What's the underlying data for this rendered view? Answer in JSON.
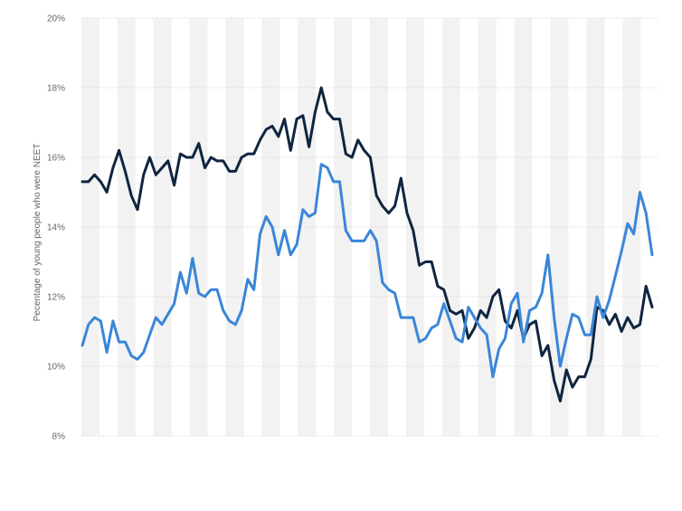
{
  "colors": {
    "series_dark": "#0f2540",
    "series_light": "#3a86d8",
    "band": "#f2f2f2",
    "grid": "#cfcfcf",
    "tick_text": "#666666"
  },
  "chart_data": {
    "type": "line",
    "title": "",
    "xlabel": "",
    "ylabel": "Pecentage of young people who were NEET",
    "ylim": [
      8,
      20
    ],
    "y_ticks": [
      8,
      10,
      12,
      14,
      16,
      18,
      20
    ],
    "y_tick_labels": [
      "8%",
      "10%",
      "12%",
      "14%",
      "16%",
      "18%",
      "20%"
    ],
    "grid": true,
    "legend": "none",
    "series": [
      {
        "color": "#0f2540",
        "values": [
          15.3,
          15.3,
          15.5,
          15.3,
          15.0,
          15.7,
          16.2,
          15.6,
          14.9,
          14.5,
          15.5,
          16.0,
          15.5,
          15.7,
          15.9,
          15.2,
          16.1,
          16.0,
          16.0,
          16.4,
          15.7,
          16.0,
          15.9,
          15.9,
          15.6,
          15.6,
          16.0,
          16.1,
          16.1,
          16.5,
          16.8,
          16.9,
          16.6,
          17.1,
          16.2,
          17.1,
          17.2,
          16.3,
          17.3,
          18.0,
          17.3,
          17.1,
          17.1,
          16.1,
          16.0,
          16.5,
          16.2,
          16.0,
          14.9,
          14.6,
          14.4,
          14.6,
          15.4,
          14.4,
          13.9,
          12.9,
          13.0,
          13.0,
          12.3,
          12.2,
          11.6,
          11.5,
          11.6,
          10.8,
          11.1,
          11.6,
          11.4,
          12.0,
          12.2,
          11.3,
          11.1,
          11.6,
          10.8,
          11.2,
          11.3,
          10.3,
          10.6,
          9.6,
          9.0,
          9.9,
          9.4,
          9.7,
          9.7,
          10.2,
          11.7,
          11.6,
          11.2,
          11.5,
          11.0,
          11.4,
          11.1,
          11.2,
          12.3,
          11.7
        ]
      },
      {
        "color": "#3a86d8",
        "values": [
          10.6,
          11.2,
          11.4,
          11.3,
          10.4,
          11.3,
          10.7,
          10.7,
          10.3,
          10.2,
          10.4,
          10.9,
          11.4,
          11.2,
          11.5,
          11.8,
          12.7,
          12.1,
          13.1,
          12.1,
          12.0,
          12.2,
          12.2,
          11.6,
          11.3,
          11.2,
          11.6,
          12.5,
          12.2,
          13.8,
          14.3,
          14.0,
          13.2,
          13.9,
          13.2,
          13.5,
          14.5,
          14.3,
          14.4,
          15.8,
          15.7,
          15.3,
          15.3,
          13.9,
          13.6,
          13.6,
          13.6,
          13.9,
          13.6,
          12.4,
          12.2,
          12.1,
          11.4,
          11.4,
          11.4,
          10.7,
          10.8,
          11.1,
          11.2,
          11.8,
          11.3,
          10.8,
          10.7,
          11.7,
          11.4,
          11.1,
          10.9,
          9.7,
          10.5,
          10.8,
          11.8,
          12.1,
          10.7,
          11.6,
          11.7,
          12.1,
          13.2,
          11.4,
          10.0,
          10.8,
          11.5,
          11.4,
          10.9,
          10.9,
          12.0,
          11.4,
          11.9,
          12.6,
          13.3,
          14.1,
          13.8,
          15.0,
          14.4,
          13.2
        ]
      }
    ]
  }
}
